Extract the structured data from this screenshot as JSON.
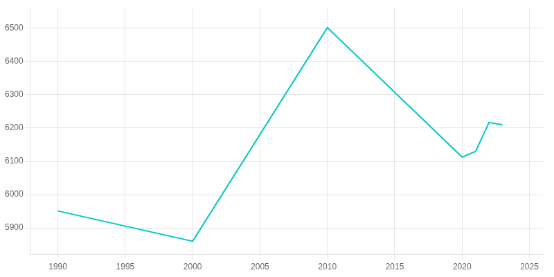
{
  "chart_data": {
    "type": "line",
    "x": [
      1990,
      2000,
      2010,
      2020,
      2021,
      2022,
      2023
    ],
    "values": [
      5951,
      5860,
      6502,
      6113,
      6130,
      6217,
      6210
    ],
    "color": "#00C8C8",
    "xlim": [
      1988,
      2026
    ],
    "ylim": [
      5820,
      6560
    ],
    "xticks": [
      1990,
      1995,
      2000,
      2005,
      2010,
      2015,
      2020,
      2025
    ],
    "yticks": [
      5900,
      6000,
      6100,
      6200,
      6300,
      6400,
      6500
    ],
    "grid": true
  }
}
